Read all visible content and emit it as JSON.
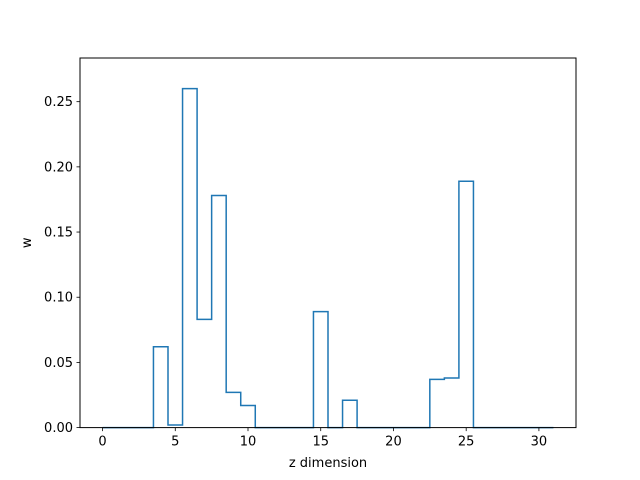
{
  "chart_data": {
    "type": "line",
    "style": "steps-mid",
    "title": "",
    "xlabel": "z dimension",
    "ylabel": "w",
    "xlim": [
      -1.55,
      32.55
    ],
    "ylim": [
      0.0,
      0.2835
    ],
    "xticks": [
      0,
      5,
      10,
      15,
      20,
      25,
      30
    ],
    "xtick_labels": [
      "0",
      "5",
      "10",
      "15",
      "20",
      "25",
      "30"
    ],
    "yticks": [
      0.0,
      0.05,
      0.1,
      0.15,
      0.2,
      0.25
    ],
    "ytick_labels": [
      "0.00",
      "0.05",
      "0.10",
      "0.15",
      "0.20",
      "0.25"
    ],
    "grid": false,
    "series": [
      {
        "color": "#1f77b4",
        "x": [
          0,
          1,
          2,
          3,
          4,
          5,
          6,
          7,
          8,
          9,
          10,
          11,
          12,
          13,
          14,
          15,
          16,
          17,
          18,
          19,
          20,
          21,
          22,
          23,
          24,
          25,
          26,
          27,
          28,
          29,
          30,
          31
        ],
        "y": [
          0,
          0,
          0,
          0,
          0.062,
          0.002,
          0.26,
          0.083,
          0.178,
          0.027,
          0.017,
          0,
          0,
          0,
          0,
          0.089,
          0,
          0.021,
          0,
          0,
          0,
          0,
          0,
          0.037,
          0.038,
          0.189,
          0,
          0,
          0,
          0,
          0,
          0
        ]
      }
    ]
  }
}
